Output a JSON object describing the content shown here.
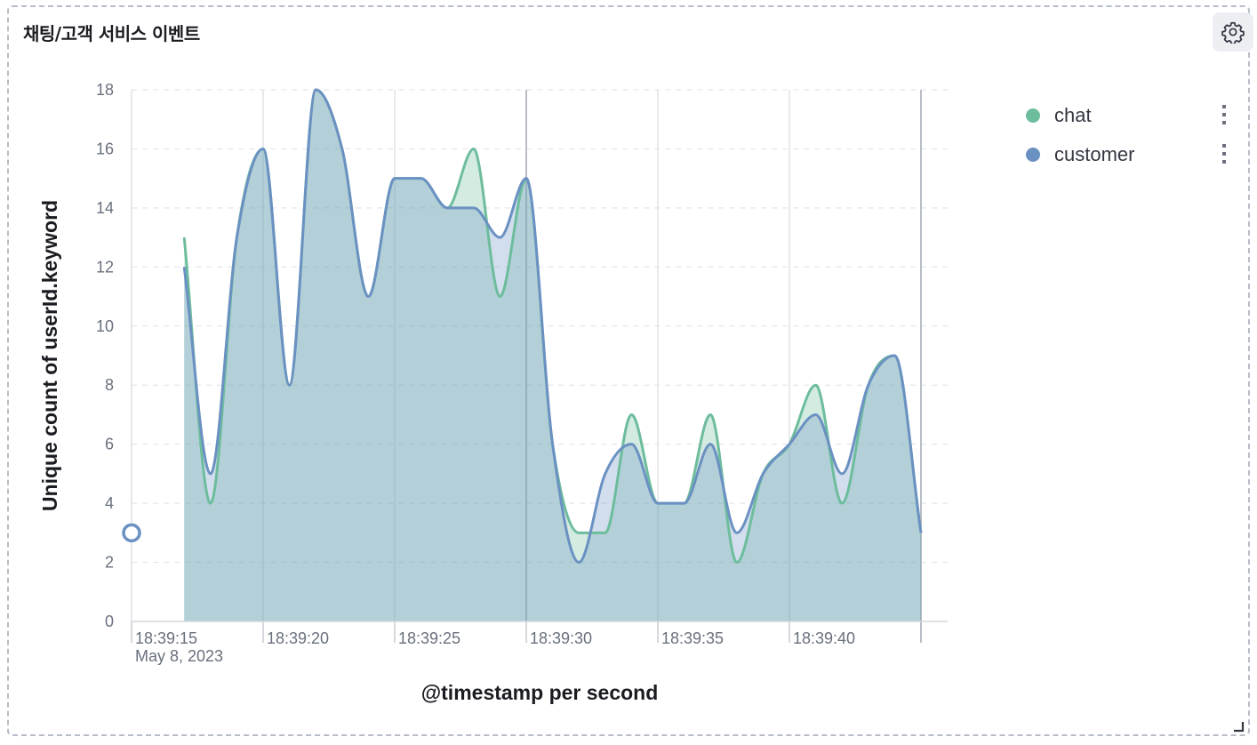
{
  "panel": {
    "title": "채팅/고객 서비스 이벤트",
    "settings_icon": "gear-icon",
    "resize_icon": "resize-corner-icon"
  },
  "chart_data": {
    "type": "area",
    "ylabel": "Unique count of userId.keyword",
    "xlabel": "@timestamp per second",
    "ylim": [
      0,
      18
    ],
    "y_ticks": [
      0,
      2,
      4,
      6,
      8,
      10,
      12,
      14,
      16,
      18
    ],
    "x_range": [
      "18:39:13",
      "18:39:43"
    ],
    "x_tick_labels": [
      "18:39:15",
      "18:39:20",
      "18:39:25",
      "18:39:30",
      "18:39:35",
      "18:39:40"
    ],
    "x_date_label": "May 8, 2023",
    "grid": true,
    "legend_position": "right",
    "x": [
      "18:39:15",
      "18:39:16",
      "18:39:17",
      "18:39:18",
      "18:39:19",
      "18:39:20",
      "18:39:21",
      "18:39:22",
      "18:39:23",
      "18:39:24",
      "18:39:25",
      "18:39:26",
      "18:39:27",
      "18:39:28",
      "18:39:29",
      "18:39:30",
      "18:39:31",
      "18:39:32",
      "18:39:33",
      "18:39:34",
      "18:39:35",
      "18:39:36",
      "18:39:37",
      "18:39:38",
      "18:39:39",
      "18:39:40",
      "18:39:41",
      "18:39:42",
      "18:39:43"
    ],
    "series": [
      {
        "name": "chat",
        "color": "#6dbd9d",
        "values": [
          13,
          4,
          13,
          16,
          8,
          18,
          16,
          11,
          15,
          15,
          14,
          16,
          11,
          15,
          6,
          3,
          3,
          7,
          4,
          4,
          7,
          2,
          5,
          6,
          8,
          4,
          8,
          9,
          3
        ]
      },
      {
        "name": "customer",
        "color": "#6b91c2",
        "values": [
          12,
          5,
          13,
          16,
          8,
          18,
          16,
          11,
          15,
          15,
          14,
          14,
          13,
          15,
          6,
          2,
          5,
          6,
          4,
          4,
          6,
          3,
          5,
          6,
          7,
          5,
          8,
          9,
          3
        ]
      }
    ],
    "marker": {
      "x": "18:39:13",
      "y": 3
    }
  }
}
